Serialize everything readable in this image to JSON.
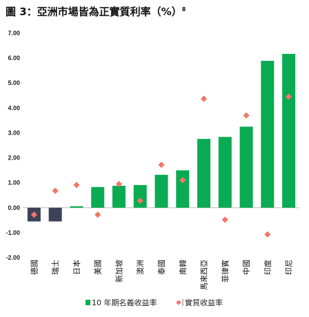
{
  "header": {
    "title": "圖 3：亞洲市場皆為正實質利率（%）",
    "footnote_mark": "8"
  },
  "chart_data": {
    "type": "bar",
    "categories": [
      "德國",
      "瑞士",
      "日本",
      "美國",
      "新加坡",
      "澳洲",
      "泰國",
      "南韓",
      "馬來西亞",
      "菲律賓",
      "中國",
      "印度",
      "印尼"
    ],
    "series": [
      {
        "name": "10 年期名義收益率",
        "kind": "bar",
        "values": [
          -0.55,
          -0.55,
          0.06,
          0.83,
          0.88,
          0.91,
          1.32,
          1.5,
          2.76,
          2.84,
          3.25,
          5.89,
          6.17
        ]
      },
      {
        "name": "實質收益率",
        "kind": "scatter",
        "values": [
          -0.28,
          0.68,
          0.91,
          -0.28,
          0.95,
          0.28,
          1.72,
          1.1,
          4.37,
          -0.48,
          3.7,
          -1.07,
          4.45
        ]
      }
    ],
    "ylim": [
      -2,
      7
    ],
    "yticks": [
      "-2.00",
      "-1.00",
      "0.00",
      "1.00",
      "2.00",
      "3.00",
      "4.00",
      "5.00",
      "6.00",
      "7.00"
    ],
    "xlabel": "",
    "ylabel": "",
    "legend": "bottom",
    "colors": {
      "positive_bar": "#0aab52",
      "negative_bar": "#3c4358",
      "scatter": "#f07868"
    }
  }
}
